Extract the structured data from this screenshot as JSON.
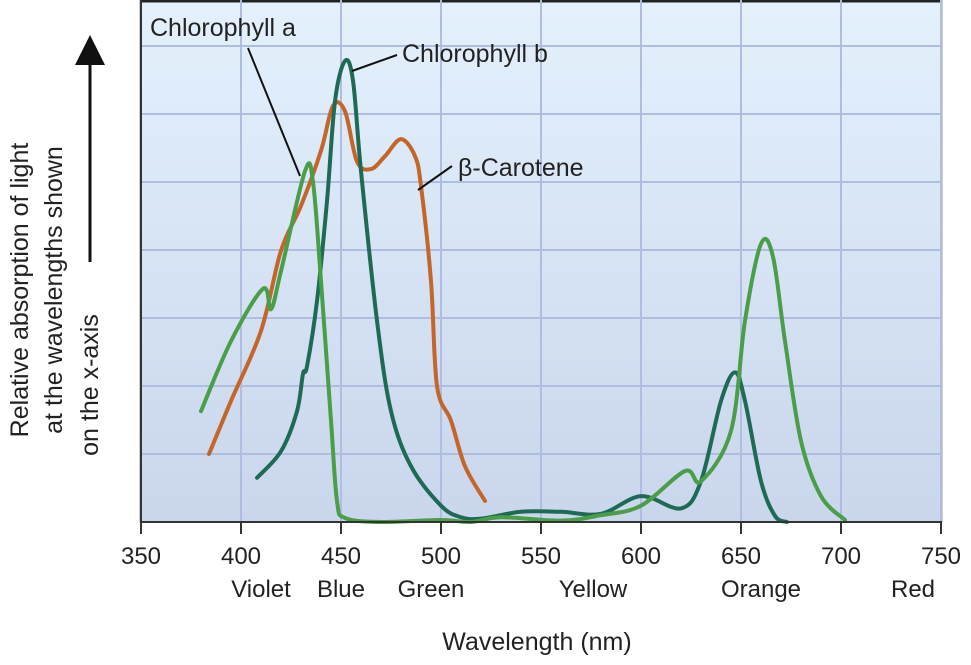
{
  "chart_data": {
    "type": "line",
    "title": "",
    "xlabel": "Wavelength (nm)",
    "ylabel_lines": [
      "Relative absorption of light",
      "at the wavelengths shown",
      "on the x-axis"
    ],
    "xlim": [
      350,
      750
    ],
    "ylim": [
      0,
      7.65
    ],
    "x_ticks": [
      350,
      400,
      450,
      500,
      550,
      600,
      650,
      700,
      750
    ],
    "y_gridlines": [
      1,
      2,
      3,
      4,
      5,
      6,
      7
    ],
    "grid": true,
    "color_bands": [
      {
        "label": "Violet",
        "x": 410
      },
      {
        "label": "Blue",
        "x": 450
      },
      {
        "label": "Green",
        "x": 495
      },
      {
        "label": "Yellow",
        "x": 576
      },
      {
        "label": "Orange",
        "x": 660
      },
      {
        "label": "Red",
        "x": 736
      }
    ],
    "series": [
      {
        "name": "β-Carotene",
        "color": "#c4652a",
        "label_at": [
          480,
          5.3
        ],
        "points": [
          [
            384,
            1.0
          ],
          [
            395,
            1.78
          ],
          [
            410,
            2.81
          ],
          [
            420,
            3.99
          ],
          [
            430,
            4.65
          ],
          [
            440,
            5.46
          ],
          [
            446,
            6.12
          ],
          [
            452,
            6.04
          ],
          [
            458,
            5.3
          ],
          [
            465,
            5.19
          ],
          [
            472,
            5.38
          ],
          [
            480,
            5.63
          ],
          [
            487,
            5.38
          ],
          [
            490,
            4.94
          ],
          [
            495,
            3.54
          ],
          [
            498,
            2.0
          ],
          [
            505,
            1.49
          ],
          [
            512,
            0.82
          ],
          [
            522,
            0.31
          ]
        ]
      },
      {
        "name": "Chlorophyll b",
        "color": "#1e6a55",
        "label_at": [
          455,
          6.7
        ],
        "points": [
          [
            408,
            0.65
          ],
          [
            420,
            1.04
          ],
          [
            428,
            1.63
          ],
          [
            431,
            2.18
          ],
          [
            433,
            2.29
          ],
          [
            438,
            3.25
          ],
          [
            443,
            4.72
          ],
          [
            447,
            6.19
          ],
          [
            452,
            6.78
          ],
          [
            456,
            6.49
          ],
          [
            460,
            5.16
          ],
          [
            468,
            2.96
          ],
          [
            475,
            1.63
          ],
          [
            485,
            0.82
          ],
          [
            500,
            0.24
          ],
          [
            510,
            0.07
          ],
          [
            520,
            0.05
          ],
          [
            540,
            0.15
          ],
          [
            560,
            0.15
          ],
          [
            580,
            0.12
          ],
          [
            600,
            0.38
          ],
          [
            620,
            0.2
          ],
          [
            630,
            0.6
          ],
          [
            640,
            1.78
          ],
          [
            647,
            2.2
          ],
          [
            652,
            1.78
          ],
          [
            660,
            0.6
          ],
          [
            667,
            0.09
          ],
          [
            673,
            0.0
          ]
        ]
      },
      {
        "name": "Chlorophyll a",
        "color": "#4a9e48",
        "label_at": [
          431,
          5.2
        ],
        "points": [
          [
            380,
            1.63
          ],
          [
            395,
            2.66
          ],
          [
            411,
            3.43
          ],
          [
            415,
            3.13
          ],
          [
            420,
            3.69
          ],
          [
            432,
            5.16
          ],
          [
            436,
            5.0
          ],
          [
            440,
            3.54
          ],
          [
            445,
            1.49
          ],
          [
            448,
            0.31
          ],
          [
            452,
            0.06
          ],
          [
            470,
            0.0
          ],
          [
            500,
            0.03
          ],
          [
            515,
            0.0
          ],
          [
            530,
            0.07
          ],
          [
            560,
            0.02
          ],
          [
            580,
            0.1
          ],
          [
            600,
            0.24
          ],
          [
            622,
            0.75
          ],
          [
            630,
            0.6
          ],
          [
            645,
            1.34
          ],
          [
            652,
            2.96
          ],
          [
            660,
            4.09
          ],
          [
            666,
            3.9
          ],
          [
            672,
            2.66
          ],
          [
            680,
            1.19
          ],
          [
            690,
            0.38
          ],
          [
            702,
            0.03
          ]
        ]
      }
    ]
  }
}
